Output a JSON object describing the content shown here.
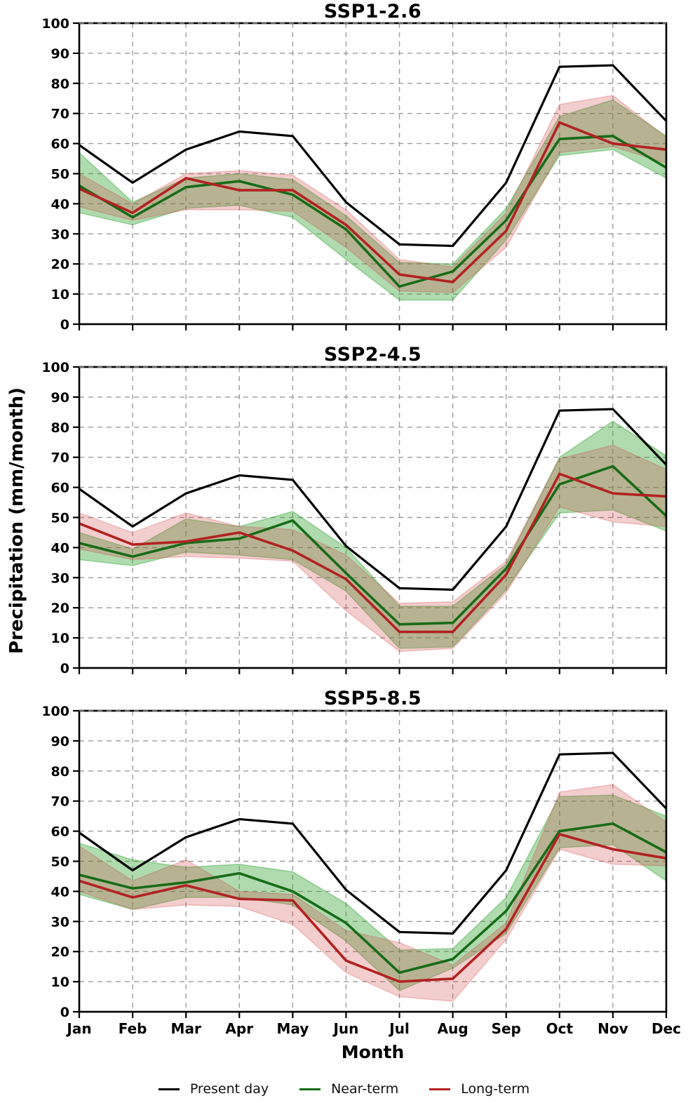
{
  "legend": {
    "items": [
      {
        "label": "Present day",
        "color": "#000000"
      },
      {
        "label": "Near-term",
        "color": "#186b18"
      },
      {
        "label": "Long-term",
        "color": "#b22222"
      }
    ]
  },
  "colors": {
    "grid": "#9c9c9c",
    "spine": "#000000",
    "near_fill": "rgba(44,160,44,0.38)",
    "long_fill": "rgba(208,66,66,0.26)"
  },
  "chart_data": {
    "type": "line",
    "xlabel": "Month",
    "ylabel": "Precipitation (mm/month)",
    "categories": [
      "Jan",
      "Feb",
      "Mar",
      "Apr",
      "May",
      "Jun",
      "Jul",
      "Aug",
      "Sep",
      "Oct",
      "Nov",
      "Dec"
    ],
    "ylim": [
      0,
      100
    ],
    "ytick_step": 10,
    "grid": true,
    "legend_position": "bottom",
    "panels": [
      {
        "title": "SSP1-2.6",
        "series": [
          {
            "name": "Present day",
            "color": "#000000",
            "values": [
              59.5,
              47,
              58,
              64,
              62.5,
              40.5,
              26.5,
              26,
              47,
              85.5,
              86,
              67.5
            ]
          },
          {
            "name": "Near-term",
            "color": "#186b18",
            "band_fill": "rgba(44,160,44,0.38)",
            "values": [
              46,
              35.5,
              45.5,
              47.5,
              43,
              31.5,
              12.5,
              17.5,
              34.5,
              61.5,
              62.5,
              52
            ],
            "band_low": [
              37,
              33,
              38.5,
              39.5,
              35.5,
              21.5,
              8,
              8,
              28,
              56,
              58,
              48.5
            ],
            "band_high": [
              57,
              40.5,
              48.5,
              50,
              48,
              36,
              20.5,
              20,
              38.5,
              69,
              74.5,
              62.5
            ]
          },
          {
            "name": "Long-term",
            "color": "#b22222",
            "band_fill": "rgba(208,66,66,0.26)",
            "values": [
              45,
              37,
              48.5,
              44.5,
              44.5,
              33,
              16.5,
              14,
              31,
              67,
              60,
              58
            ],
            "band_low": [
              39,
              34.5,
              38,
              38,
              37.5,
              25.5,
              11,
              10.5,
              25.5,
              57,
              59,
              53.5
            ],
            "band_high": [
              50,
              40,
              50,
              51,
              49.5,
              38,
              21.5,
              19,
              37,
              73,
              76,
              62
            ]
          }
        ]
      },
      {
        "title": "SSP2-4.5",
        "series": [
          {
            "name": "Present day",
            "color": "#000000",
            "values": [
              59.5,
              47,
              58,
              64,
              62.5,
              40.5,
              26.5,
              26,
              47,
              85.5,
              86,
              67.5
            ]
          },
          {
            "name": "Near-term",
            "color": "#186b18",
            "band_fill": "rgba(44,160,44,0.38)",
            "values": [
              41.5,
              37,
              41.5,
              43,
              49,
              31.5,
              14.5,
              15,
              33,
              61,
              67,
              50.5
            ],
            "band_low": [
              36,
              34,
              38.5,
              37.5,
              36,
              25.5,
              6.5,
              7,
              26,
              51.5,
              52.5,
              45.5
            ],
            "band_high": [
              45,
              39.5,
              49.5,
              47,
              52,
              40,
              20.5,
              20.5,
              34.5,
              70,
              82,
              70.5
            ]
          },
          {
            "name": "Long-term",
            "color": "#b22222",
            "band_fill": "rgba(208,66,66,0.26)",
            "values": [
              48,
              41,
              42,
              45,
              39,
              29.5,
              12,
              12,
              31,
              64.5,
              58,
              57
            ],
            "band_low": [
              39.5,
              36,
              37,
              36.5,
              35.5,
              19,
              5.5,
              6.5,
              25,
              53.5,
              48.5,
              47
            ],
            "band_high": [
              51.5,
              45,
              51.5,
              47,
              46,
              37.5,
              21.5,
              22,
              35.5,
              69.5,
              74,
              66
            ]
          }
        ]
      },
      {
        "title": "SSP5-8.5",
        "series": [
          {
            "name": "Present day",
            "color": "#000000",
            "values": [
              59.5,
              47,
              58,
              64,
              62.5,
              40.5,
              26.5,
              26,
              47,
              85.5,
              86,
              67.5
            ]
          },
          {
            "name": "Near-term",
            "color": "#186b18",
            "band_fill": "rgba(44,160,44,0.38)",
            "values": [
              45.5,
              41,
              43,
              46,
              40,
              29.5,
              13,
              17.5,
              33.5,
              60,
              62.5,
              53
            ],
            "band_low": [
              39,
              34,
              38,
              38,
              35.5,
              23.5,
              7,
              14.5,
              26,
              54.5,
              55.5,
              43.5
            ],
            "band_high": [
              56,
              50.5,
              48,
              49,
              46.5,
              36,
              20.5,
              21,
              38,
              71.5,
              72,
              65
            ]
          },
          {
            "name": "Long-term",
            "color": "#b22222",
            "band_fill": "rgba(208,66,66,0.26)",
            "values": [
              43.5,
              38,
              42,
              37.5,
              37,
              17,
              10,
              11,
              27.5,
              59,
              54,
              51
            ],
            "band_low": [
              40,
              34,
              35.5,
              35,
              29,
              13,
              5,
              3.5,
              24,
              54,
              49,
              48.5
            ],
            "band_high": [
              55,
              43.5,
              50.5,
              40,
              39,
              27,
              23,
              15.5,
              29.5,
              73,
              75.5,
              63
            ]
          }
        ]
      }
    ]
  }
}
